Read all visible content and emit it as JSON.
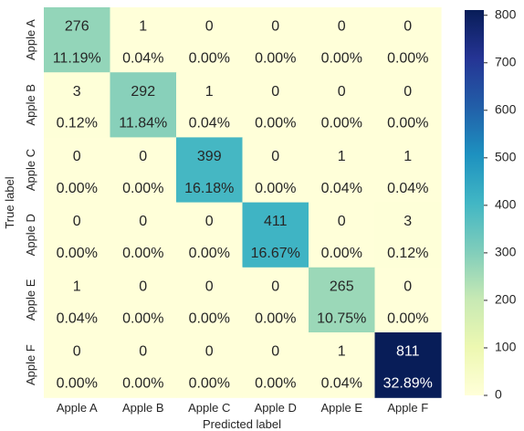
{
  "chart_data": {
    "type": "heatmap",
    "title": "",
    "xlabel": "Predicted label",
    "ylabel": "True label",
    "x_categories": [
      "Apple A",
      "Apple B",
      "Apple C",
      "Apple D",
      "Apple E",
      "Apple F"
    ],
    "y_categories": [
      "Apple A",
      "Apple B",
      "Apple C",
      "Apple D",
      "Apple E",
      "Apple F"
    ],
    "values": [
      [
        276,
        1,
        0,
        0,
        0,
        0
      ],
      [
        3,
        292,
        1,
        0,
        0,
        0
      ],
      [
        0,
        0,
        399,
        0,
        1,
        1
      ],
      [
        0,
        0,
        0,
        411,
        0,
        3
      ],
      [
        1,
        0,
        0,
        0,
        265,
        0
      ],
      [
        0,
        0,
        0,
        0,
        1,
        811
      ]
    ],
    "percentages": [
      [
        "11.19%",
        "0.04%",
        "0.00%",
        "0.00%",
        "0.00%",
        "0.00%"
      ],
      [
        "0.12%",
        "11.84%",
        "0.04%",
        "0.00%",
        "0.00%",
        "0.00%"
      ],
      [
        "0.00%",
        "0.00%",
        "16.18%",
        "0.00%",
        "0.04%",
        "0.04%"
      ],
      [
        "0.00%",
        "0.00%",
        "0.00%",
        "16.67%",
        "0.00%",
        "0.12%"
      ],
      [
        "0.04%",
        "0.00%",
        "0.00%",
        "0.00%",
        "10.75%",
        "0.00%"
      ],
      [
        "0.00%",
        "0.00%",
        "0.00%",
        "0.00%",
        "0.04%",
        "32.89%"
      ]
    ],
    "colorbar": {
      "colormap": "YlGnBu",
      "range": [
        0,
        811
      ],
      "ticks": [
        0,
        100,
        200,
        300,
        400,
        500,
        600,
        700,
        800
      ],
      "tick_labels": [
        "0",
        "100",
        "200",
        "300",
        "400",
        "500",
        "600",
        "700",
        "800"
      ]
    }
  }
}
